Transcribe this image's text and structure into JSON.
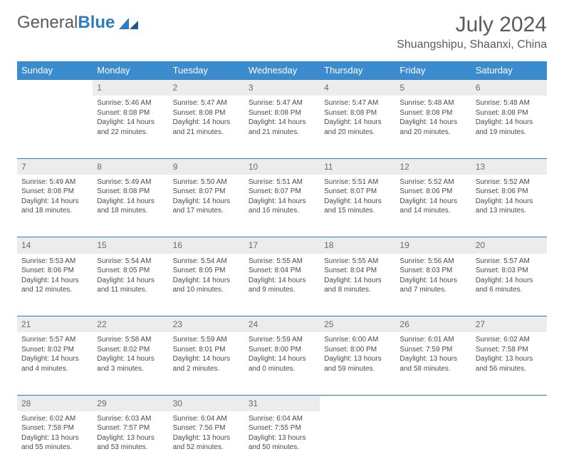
{
  "brand": {
    "part1": "General",
    "part2": "Blue"
  },
  "title": "July 2024",
  "location": "Shuangshipu, Shaanxi, China",
  "header_bg": "#3a8ccf",
  "daynum_bg": "#ececec",
  "border_color": "#2c7ec4",
  "day_headers": [
    "Sunday",
    "Monday",
    "Tuesday",
    "Wednesday",
    "Thursday",
    "Friday",
    "Saturday"
  ],
  "weeks": [
    [
      null,
      {
        "n": "1",
        "sr": "Sunrise: 5:46 AM",
        "ss": "Sunset: 8:08 PM",
        "d1": "Daylight: 14 hours",
        "d2": "and 22 minutes."
      },
      {
        "n": "2",
        "sr": "Sunrise: 5:47 AM",
        "ss": "Sunset: 8:08 PM",
        "d1": "Daylight: 14 hours",
        "d2": "and 21 minutes."
      },
      {
        "n": "3",
        "sr": "Sunrise: 5:47 AM",
        "ss": "Sunset: 8:08 PM",
        "d1": "Daylight: 14 hours",
        "d2": "and 21 minutes."
      },
      {
        "n": "4",
        "sr": "Sunrise: 5:47 AM",
        "ss": "Sunset: 8:08 PM",
        "d1": "Daylight: 14 hours",
        "d2": "and 20 minutes."
      },
      {
        "n": "5",
        "sr": "Sunrise: 5:48 AM",
        "ss": "Sunset: 8:08 PM",
        "d1": "Daylight: 14 hours",
        "d2": "and 20 minutes."
      },
      {
        "n": "6",
        "sr": "Sunrise: 5:48 AM",
        "ss": "Sunset: 8:08 PM",
        "d1": "Daylight: 14 hours",
        "d2": "and 19 minutes."
      }
    ],
    [
      {
        "n": "7",
        "sr": "Sunrise: 5:49 AM",
        "ss": "Sunset: 8:08 PM",
        "d1": "Daylight: 14 hours",
        "d2": "and 18 minutes."
      },
      {
        "n": "8",
        "sr": "Sunrise: 5:49 AM",
        "ss": "Sunset: 8:08 PM",
        "d1": "Daylight: 14 hours",
        "d2": "and 18 minutes."
      },
      {
        "n": "9",
        "sr": "Sunrise: 5:50 AM",
        "ss": "Sunset: 8:07 PM",
        "d1": "Daylight: 14 hours",
        "d2": "and 17 minutes."
      },
      {
        "n": "10",
        "sr": "Sunrise: 5:51 AM",
        "ss": "Sunset: 8:07 PM",
        "d1": "Daylight: 14 hours",
        "d2": "and 16 minutes."
      },
      {
        "n": "11",
        "sr": "Sunrise: 5:51 AM",
        "ss": "Sunset: 8:07 PM",
        "d1": "Daylight: 14 hours",
        "d2": "and 15 minutes."
      },
      {
        "n": "12",
        "sr": "Sunrise: 5:52 AM",
        "ss": "Sunset: 8:06 PM",
        "d1": "Daylight: 14 hours",
        "d2": "and 14 minutes."
      },
      {
        "n": "13",
        "sr": "Sunrise: 5:52 AM",
        "ss": "Sunset: 8:06 PM",
        "d1": "Daylight: 14 hours",
        "d2": "and 13 minutes."
      }
    ],
    [
      {
        "n": "14",
        "sr": "Sunrise: 5:53 AM",
        "ss": "Sunset: 8:06 PM",
        "d1": "Daylight: 14 hours",
        "d2": "and 12 minutes."
      },
      {
        "n": "15",
        "sr": "Sunrise: 5:54 AM",
        "ss": "Sunset: 8:05 PM",
        "d1": "Daylight: 14 hours",
        "d2": "and 11 minutes."
      },
      {
        "n": "16",
        "sr": "Sunrise: 5:54 AM",
        "ss": "Sunset: 8:05 PM",
        "d1": "Daylight: 14 hours",
        "d2": "and 10 minutes."
      },
      {
        "n": "17",
        "sr": "Sunrise: 5:55 AM",
        "ss": "Sunset: 8:04 PM",
        "d1": "Daylight: 14 hours",
        "d2": "and 9 minutes."
      },
      {
        "n": "18",
        "sr": "Sunrise: 5:55 AM",
        "ss": "Sunset: 8:04 PM",
        "d1": "Daylight: 14 hours",
        "d2": "and 8 minutes."
      },
      {
        "n": "19",
        "sr": "Sunrise: 5:56 AM",
        "ss": "Sunset: 8:03 PM",
        "d1": "Daylight: 14 hours",
        "d2": "and 7 minutes."
      },
      {
        "n": "20",
        "sr": "Sunrise: 5:57 AM",
        "ss": "Sunset: 8:03 PM",
        "d1": "Daylight: 14 hours",
        "d2": "and 6 minutes."
      }
    ],
    [
      {
        "n": "21",
        "sr": "Sunrise: 5:57 AM",
        "ss": "Sunset: 8:02 PM",
        "d1": "Daylight: 14 hours",
        "d2": "and 4 minutes."
      },
      {
        "n": "22",
        "sr": "Sunrise: 5:58 AM",
        "ss": "Sunset: 8:02 PM",
        "d1": "Daylight: 14 hours",
        "d2": "and 3 minutes."
      },
      {
        "n": "23",
        "sr": "Sunrise: 5:59 AM",
        "ss": "Sunset: 8:01 PM",
        "d1": "Daylight: 14 hours",
        "d2": "and 2 minutes."
      },
      {
        "n": "24",
        "sr": "Sunrise: 5:59 AM",
        "ss": "Sunset: 8:00 PM",
        "d1": "Daylight: 14 hours",
        "d2": "and 0 minutes."
      },
      {
        "n": "25",
        "sr": "Sunrise: 6:00 AM",
        "ss": "Sunset: 8:00 PM",
        "d1": "Daylight: 13 hours",
        "d2": "and 59 minutes."
      },
      {
        "n": "26",
        "sr": "Sunrise: 6:01 AM",
        "ss": "Sunset: 7:59 PM",
        "d1": "Daylight: 13 hours",
        "d2": "and 58 minutes."
      },
      {
        "n": "27",
        "sr": "Sunrise: 6:02 AM",
        "ss": "Sunset: 7:58 PM",
        "d1": "Daylight: 13 hours",
        "d2": "and 56 minutes."
      }
    ],
    [
      {
        "n": "28",
        "sr": "Sunrise: 6:02 AM",
        "ss": "Sunset: 7:58 PM",
        "d1": "Daylight: 13 hours",
        "d2": "and 55 minutes."
      },
      {
        "n": "29",
        "sr": "Sunrise: 6:03 AM",
        "ss": "Sunset: 7:57 PM",
        "d1": "Daylight: 13 hours",
        "d2": "and 53 minutes."
      },
      {
        "n": "30",
        "sr": "Sunrise: 6:04 AM",
        "ss": "Sunset: 7:56 PM",
        "d1": "Daylight: 13 hours",
        "d2": "and 52 minutes."
      },
      {
        "n": "31",
        "sr": "Sunrise: 6:04 AM",
        "ss": "Sunset: 7:55 PM",
        "d1": "Daylight: 13 hours",
        "d2": "and 50 minutes."
      },
      null,
      null,
      null
    ]
  ]
}
